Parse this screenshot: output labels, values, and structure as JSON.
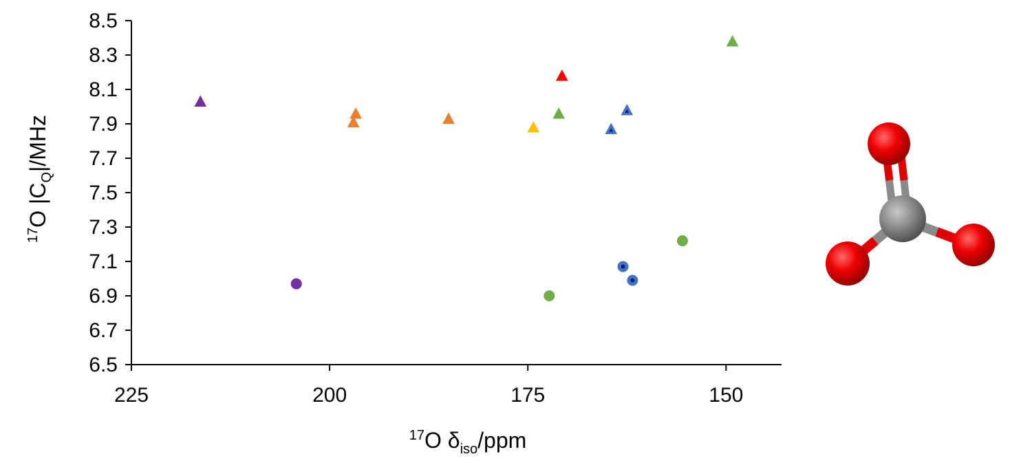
{
  "chart_data": {
    "type": "scatter",
    "xlabel": {
      "prefix": "17",
      "main": "O δ",
      "sub": "iso",
      "suffix": "/ppm"
    },
    "ylabel": {
      "prefix": "17",
      "main": "O |C",
      "sub": "Q",
      "suffix": "|/MHz"
    },
    "xlim": [
      225,
      143
    ],
    "x_reversed": true,
    "ylim": [
      6.5,
      8.5
    ],
    "x_ticks": [
      225,
      200,
      175,
      150
    ],
    "y_ticks": [
      6.5,
      6.7,
      6.9,
      7.1,
      7.3,
      7.5,
      7.7,
      7.9,
      8.1,
      8.3,
      8.5
    ],
    "y_tick_labels": [
      "6.5",
      "6.7",
      "6.9",
      "7.1",
      "7.3",
      "7.5",
      "7.7",
      "7.9",
      "8.1",
      "8.3",
      "8.5"
    ],
    "grid": false,
    "legend": "none",
    "points": [
      {
        "x": 216.3,
        "y": 8.03,
        "marker": "triangle",
        "color": "#7030a0"
      },
      {
        "x": 196.7,
        "y": 7.96,
        "marker": "triangle",
        "color": "#ed7d31"
      },
      {
        "x": 197.0,
        "y": 7.91,
        "marker": "triangle",
        "color": "#ed7d31"
      },
      {
        "x": 185.0,
        "y": 7.93,
        "marker": "triangle",
        "color": "#ed7d31"
      },
      {
        "x": 174.3,
        "y": 7.88,
        "marker": "triangle",
        "color": "#ffc000"
      },
      {
        "x": 171.1,
        "y": 7.96,
        "marker": "triangle",
        "color": "#70ad47"
      },
      {
        "x": 170.7,
        "y": 8.18,
        "marker": "triangle",
        "color": "#ff0000"
      },
      {
        "x": 162.5,
        "y": 7.98,
        "marker": "triangle-hollow",
        "color": "#4472c4"
      },
      {
        "x": 164.5,
        "y": 7.87,
        "marker": "triangle-hollow",
        "color": "#4472c4"
      },
      {
        "x": 149.2,
        "y": 8.38,
        "marker": "triangle",
        "color": "#70ad47"
      },
      {
        "x": 204.2,
        "y": 6.97,
        "marker": "circle",
        "color": "#7030a0"
      },
      {
        "x": 172.3,
        "y": 6.9,
        "marker": "circle",
        "color": "#70ad47"
      },
      {
        "x": 155.5,
        "y": 7.22,
        "marker": "circle",
        "color": "#70ad47"
      },
      {
        "x": 163.0,
        "y": 7.07,
        "marker": "circle-dot",
        "color": "#4472c4"
      },
      {
        "x": 161.8,
        "y": 6.99,
        "marker": "circle-dot",
        "color": "#4472c4"
      }
    ]
  },
  "molecule": {
    "name": "carbonate",
    "atom_colors": {
      "oxygen": "#ff0000",
      "carbon": "#808080"
    }
  }
}
